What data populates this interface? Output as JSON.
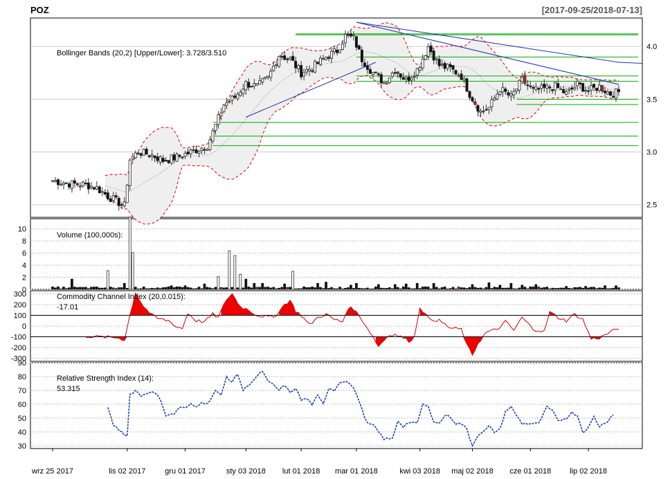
{
  "header": {
    "symbol": "POZ",
    "range": "[2017-09-25/2018-07-13]"
  },
  "chart_data": {
    "type": "candlestick",
    "x_labels": [
      "wrz 25 2017",
      "lis 02 2017",
      "gru 01 2017",
      "sty 03 2018",
      "lut 01 2018",
      "mar 01 2018",
      "kwi 03 2018",
      "maj 02 2018",
      "cze 01 2018",
      "lip 02 2018"
    ],
    "x_label_index": [
      0,
      27,
      48,
      70,
      90,
      110,
      133,
      152,
      173,
      194
    ],
    "n_bars": 206,
    "price": {
      "ylim": [
        2.38,
        4.27
      ],
      "ticks": [
        2.5,
        3.0,
        3.5,
        4.0
      ],
      "bollinger_label": "Bollinger Bands (20,2) [Upper/Lower]: 3.728/3.510",
      "anchors": [
        [
          0,
          2.73
        ],
        [
          6,
          2.7
        ],
        [
          12,
          2.69
        ],
        [
          16,
          2.66
        ],
        [
          20,
          2.58
        ],
        [
          26,
          2.49
        ],
        [
          28,
          2.93
        ],
        [
          31,
          3.0
        ],
        [
          36,
          2.97
        ],
        [
          40,
          2.92
        ],
        [
          45,
          2.95
        ],
        [
          52,
          3.02
        ],
        [
          56,
          3.06
        ],
        [
          59,
          3.25
        ],
        [
          62,
          3.45
        ],
        [
          66,
          3.52
        ],
        [
          70,
          3.65
        ],
        [
          74,
          3.62
        ],
        [
          78,
          3.7
        ],
        [
          82,
          3.92
        ],
        [
          86,
          3.88
        ],
        [
          90,
          3.75
        ],
        [
          94,
          3.8
        ],
        [
          99,
          3.9
        ],
        [
          103,
          3.96
        ],
        [
          106,
          4.1
        ],
        [
          109,
          4.08
        ],
        [
          112,
          3.88
        ],
        [
          116,
          3.75
        ],
        [
          120,
          3.66
        ],
        [
          124,
          3.78
        ],
        [
          128,
          3.68
        ],
        [
          132,
          3.78
        ],
        [
          136,
          4.0
        ],
        [
          140,
          3.82
        ],
        [
          144,
          3.79
        ],
        [
          148,
          3.72
        ],
        [
          151,
          3.55
        ],
        [
          155,
          3.38
        ],
        [
          158,
          3.42
        ],
        [
          162,
          3.6
        ],
        [
          166,
          3.52
        ],
        [
          170,
          3.68
        ],
        [
          174,
          3.58
        ],
        [
          178,
          3.6
        ],
        [
          182,
          3.62
        ],
        [
          186,
          3.55
        ],
        [
          190,
          3.64
        ],
        [
          194,
          3.58
        ],
        [
          198,
          3.62
        ],
        [
          202,
          3.55
        ],
        [
          205,
          3.57
        ]
      ],
      "green_levels": [
        4.12,
        4.11,
        3.9,
        3.72,
        3.67,
        3.5,
        3.45,
        3.28,
        3.15,
        3.06
      ],
      "trendlines": [
        {
          "from": [
            70,
            3.33
          ],
          "to": [
            117,
            3.85
          ]
        },
        {
          "from": [
            110,
            4.23
          ],
          "to": [
            205,
            3.85
          ]
        },
        {
          "from": [
            110,
            4.23
          ],
          "to": [
            205,
            3.64
          ]
        }
      ]
    },
    "volume": {
      "title": "Volume (100,000s):",
      "ylim": [
        0,
        11
      ],
      "ticks": [
        0,
        2,
        4,
        6,
        8,
        10
      ],
      "spikes": [
        [
          7,
          1.7
        ],
        [
          20,
          3.1
        ],
        [
          26,
          1.0
        ],
        [
          28,
          12.0
        ],
        [
          29,
          6.1
        ],
        [
          43,
          0.6
        ],
        [
          48,
          0.6
        ],
        [
          55,
          0.9
        ],
        [
          60,
          2.1
        ],
        [
          64,
          6.4
        ],
        [
          66,
          5.6
        ],
        [
          68,
          2.5
        ],
        [
          70,
          1.7
        ],
        [
          73,
          1.0
        ],
        [
          76,
          1.0
        ],
        [
          84,
          0.9
        ],
        [
          87,
          3.0
        ],
        [
          96,
          1.0
        ],
        [
          99,
          1.2
        ],
        [
          108,
          0.7
        ],
        [
          110,
          1.0
        ],
        [
          118,
          0.8
        ],
        [
          124,
          0.8
        ],
        [
          128,
          0.9
        ],
        [
          132,
          1.0
        ],
        [
          138,
          1.0
        ],
        [
          152,
          0.8
        ],
        [
          158,
          1.1
        ],
        [
          162,
          0.7
        ],
        [
          166,
          1.0
        ],
        [
          170,
          0.7
        ],
        [
          175,
          0.8
        ],
        [
          186,
          0.5
        ],
        [
          193,
          0.5
        ],
        [
          200,
          0.6
        ],
        [
          204,
          0.6
        ]
      ]
    },
    "cci": {
      "title": "Commodity Channel Index (20,0.015):",
      "value_label": "-17.01",
      "ylim": [
        -330,
        330
      ],
      "ticks": [
        300,
        200,
        100,
        0,
        -100,
        -200,
        -300
      ],
      "levels": [
        100,
        -100
      ],
      "anchors": [
        [
          12,
          -95
        ],
        [
          16,
          -100
        ],
        [
          20,
          -105
        ],
        [
          24,
          -110
        ],
        [
          26,
          -130
        ],
        [
          28,
          100
        ],
        [
          30,
          310
        ],
        [
          33,
          180
        ],
        [
          36,
          100
        ],
        [
          38,
          70
        ],
        [
          42,
          50
        ],
        [
          45,
          -10
        ],
        [
          47,
          -20
        ],
        [
          49,
          120
        ],
        [
          52,
          50
        ],
        [
          55,
          40
        ],
        [
          58,
          110
        ],
        [
          60,
          80
        ],
        [
          63,
          250
        ],
        [
          65,
          300
        ],
        [
          68,
          180
        ],
        [
          71,
          150
        ],
        [
          74,
          100
        ],
        [
          77,
          90
        ],
        [
          80,
          80
        ],
        [
          84,
          200
        ],
        [
          86,
          240
        ],
        [
          88,
          140
        ],
        [
          90,
          100
        ],
        [
          93,
          10
        ],
        [
          96,
          80
        ],
        [
          99,
          110
        ],
        [
          102,
          60
        ],
        [
          105,
          40
        ],
        [
          107,
          170
        ],
        [
          109,
          160
        ],
        [
          112,
          60
        ],
        [
          116,
          -100
        ],
        [
          118,
          -190
        ],
        [
          120,
          -130
        ],
        [
          122,
          -80
        ],
        [
          124,
          -80
        ],
        [
          127,
          -110
        ],
        [
          129,
          -140
        ],
        [
          131,
          -100
        ],
        [
          133,
          180
        ],
        [
          136,
          70
        ],
        [
          140,
          50
        ],
        [
          144,
          -20
        ],
        [
          148,
          -30
        ],
        [
          150,
          -180
        ],
        [
          152,
          -270
        ],
        [
          154,
          -160
        ],
        [
          157,
          -60
        ],
        [
          161,
          -30
        ],
        [
          164,
          40
        ],
        [
          167,
          -40
        ],
        [
          170,
          80
        ],
        [
          174,
          -30
        ],
        [
          178,
          -50
        ],
        [
          180,
          130
        ],
        [
          183,
          80
        ],
        [
          186,
          50
        ],
        [
          189,
          110
        ],
        [
          192,
          60
        ],
        [
          195,
          -120
        ],
        [
          198,
          -110
        ],
        [
          201,
          -70
        ],
        [
          205,
          -17
        ]
      ]
    },
    "rsi": {
      "title": "Relative Strength Index (14):",
      "value_label": "53.315",
      "ylim": [
        28,
        90
      ],
      "ticks": [
        90,
        80,
        70,
        60,
        50,
        40,
        30
      ],
      "anchors": [
        [
          20,
          57
        ],
        [
          22,
          45
        ],
        [
          25,
          40
        ],
        [
          27,
          37
        ],
        [
          28,
          67
        ],
        [
          30,
          70
        ],
        [
          32,
          66
        ],
        [
          35,
          69
        ],
        [
          37,
          68
        ],
        [
          39,
          64
        ],
        [
          41,
          52
        ],
        [
          44,
          53
        ],
        [
          46,
          58
        ],
        [
          48,
          57
        ],
        [
          50,
          60
        ],
        [
          52,
          58
        ],
        [
          54,
          62
        ],
        [
          56,
          60
        ],
        [
          59,
          70
        ],
        [
          61,
          66
        ],
        [
          63,
          80
        ],
        [
          65,
          76
        ],
        [
          67,
          82
        ],
        [
          69,
          70
        ],
        [
          71,
          74
        ],
        [
          74,
          80
        ],
        [
          76,
          84
        ],
        [
          78,
          76
        ],
        [
          80,
          74
        ],
        [
          82,
          70
        ],
        [
          84,
          74
        ],
        [
          86,
          68
        ],
        [
          88,
          72
        ],
        [
          90,
          63
        ],
        [
          92,
          64
        ],
        [
          94,
          60
        ],
        [
          96,
          66
        ],
        [
          98,
          60
        ],
        [
          100,
          72
        ],
        [
          102,
          70
        ],
        [
          104,
          76
        ],
        [
          106,
          77
        ],
        [
          108,
          74
        ],
        [
          110,
          68
        ],
        [
          112,
          56
        ],
        [
          114,
          46
        ],
        [
          116,
          45
        ],
        [
          118,
          40
        ],
        [
          120,
          35
        ],
        [
          123,
          35
        ],
        [
          125,
          48
        ],
        [
          127,
          44
        ],
        [
          129,
          47
        ],
        [
          132,
          46
        ],
        [
          134,
          60
        ],
        [
          136,
          58
        ],
        [
          138,
          48
        ],
        [
          140,
          46
        ],
        [
          142,
          52
        ],
        [
          144,
          51
        ],
        [
          146,
          46
        ],
        [
          148,
          46
        ],
        [
          150,
          42
        ],
        [
          152,
          30
        ],
        [
          154,
          38
        ],
        [
          156,
          40
        ],
        [
          158,
          44
        ],
        [
          160,
          40
        ],
        [
          162,
          42
        ],
        [
          164,
          55
        ],
        [
          166,
          58
        ],
        [
          168,
          52
        ],
        [
          170,
          46
        ],
        [
          173,
          46
        ],
        [
          176,
          46
        ],
        [
          179,
          58
        ],
        [
          181,
          55
        ],
        [
          183,
          48
        ],
        [
          186,
          50
        ],
        [
          188,
          54
        ],
        [
          190,
          52
        ],
        [
          192,
          40
        ],
        [
          194,
          43
        ],
        [
          196,
          51
        ],
        [
          198,
          44
        ],
        [
          201,
          48
        ],
        [
          203,
          53
        ]
      ]
    }
  }
}
